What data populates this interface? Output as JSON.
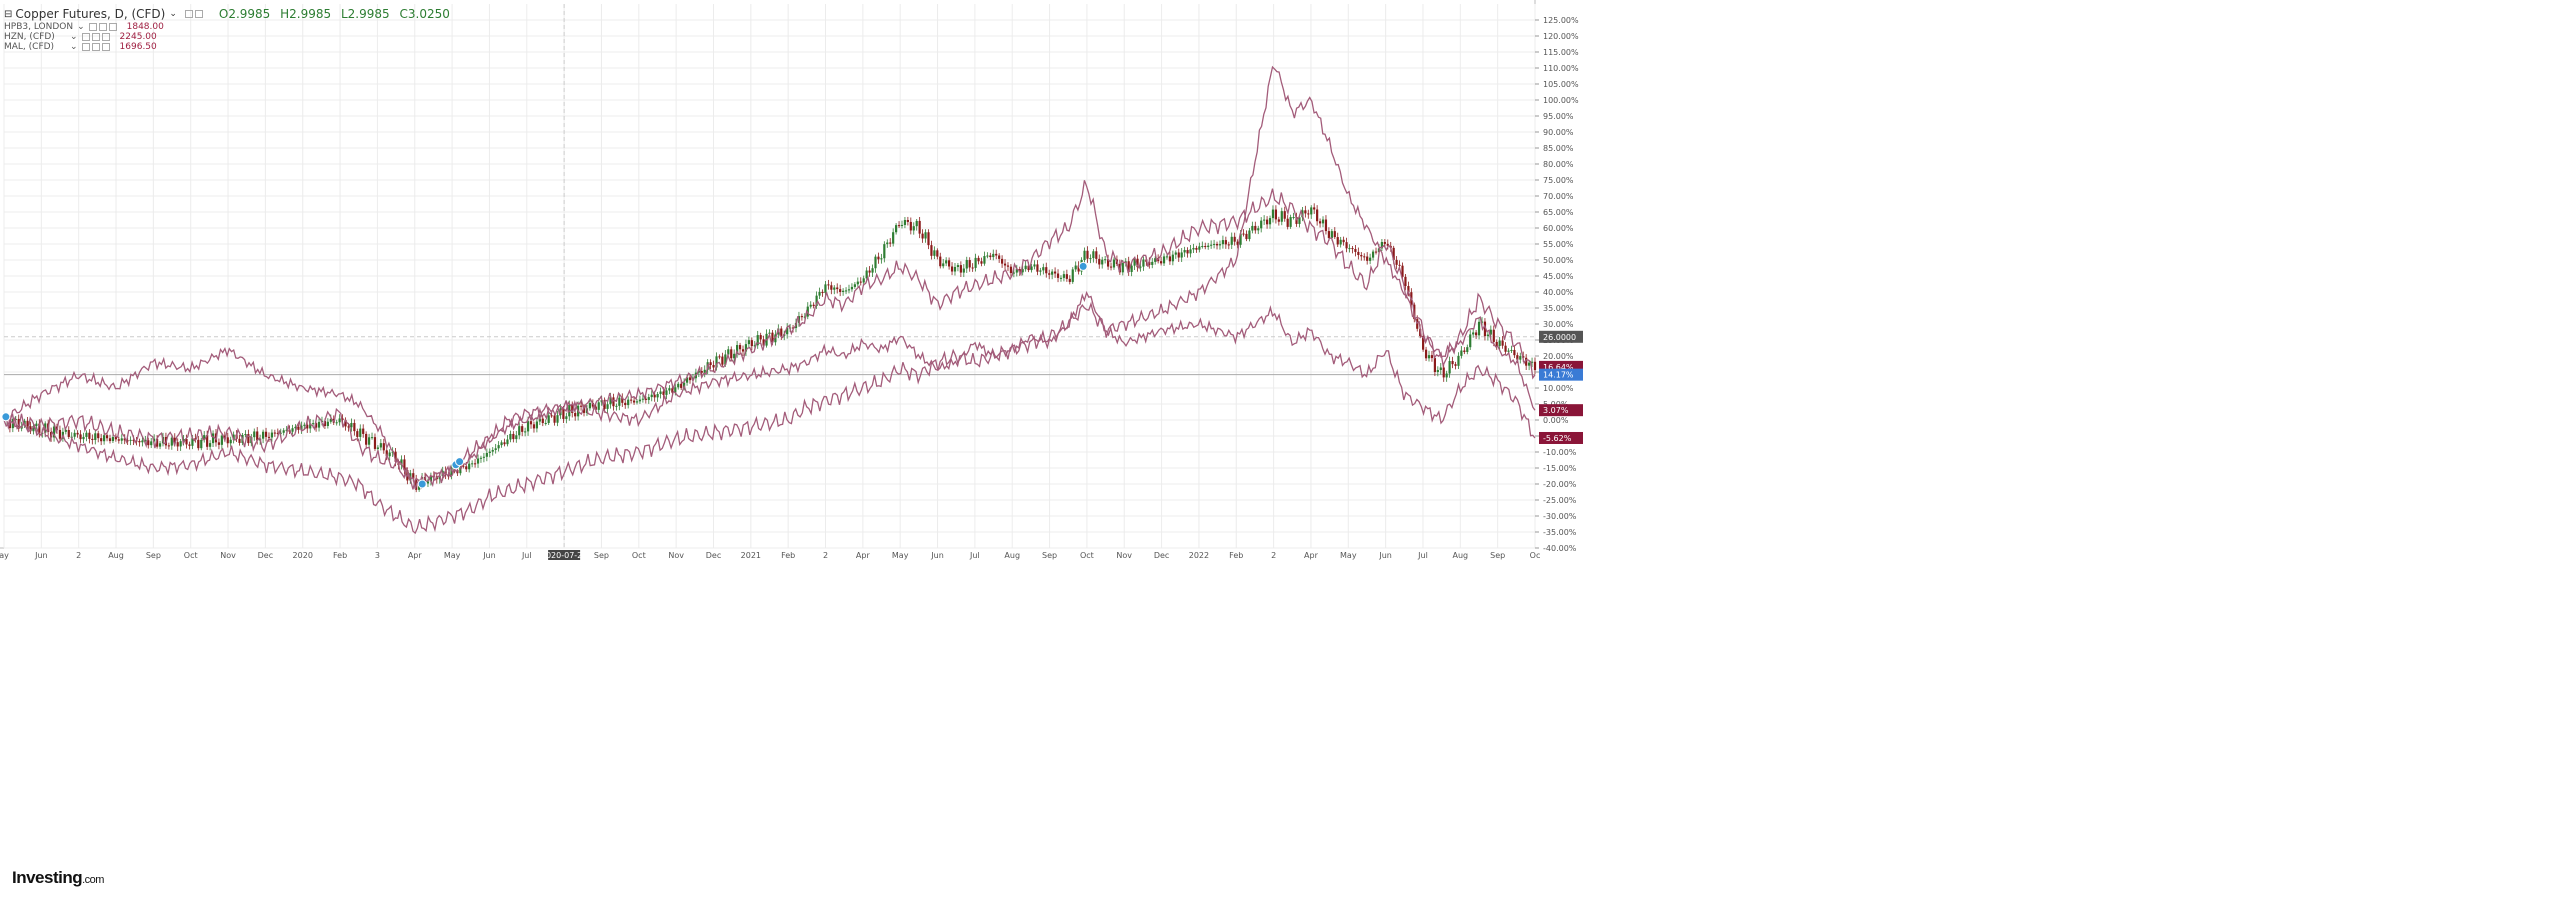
{
  "legend": {
    "main_name": "Copper Futures, D, (CFD)",
    "open": "O2.9985",
    "high": "H2.9985",
    "low": "L2.9985",
    "close": "C3.0250",
    "overlays": [
      {
        "name": "HPB3, LONDON",
        "value": "1848.00"
      },
      {
        "name": "HZN, (CFD)",
        "value": "2245.00"
      },
      {
        "name": "MAL, (CFD)",
        "value": "1696.50"
      }
    ]
  },
  "brand": {
    "main": "Investing",
    "suffix": ".com"
  },
  "colors": {
    "overlay": "#a35c7a",
    "up": "#2e7d32",
    "down": "#8b1a1a",
    "grid": "#ececec",
    "badge_current": "#3a7bd5",
    "badge_dark": "#8a1538",
    "badge_gray": "#555555"
  },
  "chart_data": {
    "type": "line",
    "y_scale": "percent",
    "ylim": [
      -40,
      130
    ],
    "y_ticks": [
      "-40.00%",
      "-35.00%",
      "-30.00%",
      "-25.00%",
      "-20.00%",
      "-15.00%",
      "-10.00%",
      "-5.00%",
      "0.00%",
      "5.00%",
      "10.00%",
      "15.00%",
      "20.00%",
      "25.00%",
      "30.00%",
      "35.00%",
      "40.00%",
      "45.00%",
      "50.00%",
      "55.00%",
      "60.00%",
      "65.00%",
      "70.00%",
      "75.00%",
      "80.00%",
      "85.00%",
      "90.00%",
      "95.00%",
      "100.00%",
      "105.00%",
      "110.00%",
      "115.00%",
      "120.00%",
      "125.00%"
    ],
    "x_ticks": [
      {
        "t": 0,
        "label": "ay"
      },
      {
        "t": 1,
        "label": "Jun"
      },
      {
        "t": 2,
        "label": "2"
      },
      {
        "t": 3,
        "label": "Aug"
      },
      {
        "t": 4,
        "label": "Sep"
      },
      {
        "t": 5,
        "label": "Oct"
      },
      {
        "t": 6,
        "label": "Nov"
      },
      {
        "t": 7,
        "label": "Dec"
      },
      {
        "t": 8,
        "label": "2020"
      },
      {
        "t": 9,
        "label": "Feb"
      },
      {
        "t": 10,
        "label": "3"
      },
      {
        "t": 11,
        "label": "Apr"
      },
      {
        "t": 12,
        "label": "May"
      },
      {
        "t": 13,
        "label": "Jun"
      },
      {
        "t": 14,
        "label": "Jul"
      },
      {
        "t": 15,
        "label": "2020-07-21"
      },
      {
        "t": 16,
        "label": "Sep"
      },
      {
        "t": 17,
        "label": "Oct"
      },
      {
        "t": 18,
        "label": "Nov"
      },
      {
        "t": 19,
        "label": "Dec"
      },
      {
        "t": 20,
        "label": "2021"
      },
      {
        "t": 21,
        "label": "Feb"
      },
      {
        "t": 22,
        "label": "2"
      },
      {
        "t": 23,
        "label": "Apr"
      },
      {
        "t": 24,
        "label": "May"
      },
      {
        "t": 25,
        "label": "Jun"
      },
      {
        "t": 26,
        "label": "Jul"
      },
      {
        "t": 27,
        "label": "Aug"
      },
      {
        "t": 28,
        "label": "Sep"
      },
      {
        "t": 29,
        "label": "Oct"
      },
      {
        "t": 30,
        "label": "Nov"
      },
      {
        "t": 31,
        "label": "Dec"
      },
      {
        "t": 32,
        "label": "2022"
      },
      {
        "t": 33,
        "label": "Feb"
      },
      {
        "t": 34,
        "label": "2"
      },
      {
        "t": 35,
        "label": "Apr"
      },
      {
        "t": 36,
        "label": "May"
      },
      {
        "t": 37,
        "label": "Jun"
      },
      {
        "t": 38,
        "label": "Jul"
      },
      {
        "t": 39,
        "label": "Aug"
      },
      {
        "t": 40,
        "label": "Sep"
      },
      {
        "t": 41,
        "label": "Oc"
      }
    ],
    "highlighted_x_label": "2020-07-21",
    "crosshair_y": 26.0,
    "price_badges": [
      {
        "y": 26.0,
        "label": "26.0000",
        "style": "gray"
      },
      {
        "y": 16.6,
        "label": "16.64%",
        "style": "dark"
      },
      {
        "y": 14.17,
        "label": "14.17%",
        "style": "current"
      },
      {
        "y": 3.07,
        "label": "3.07%",
        "style": "dark"
      },
      {
        "y": -5.62,
        "label": "-5.62%",
        "style": "dark"
      }
    ],
    "series": [
      {
        "name": "Copper Futures",
        "kind": "candles",
        "x": [
          0,
          1,
          2,
          3,
          4,
          5,
          6,
          7,
          8,
          9,
          9.5,
          10,
          10.5,
          11,
          11.5,
          12,
          12.5,
          13,
          13.5,
          14,
          15,
          16,
          17,
          18,
          19,
          20,
          21,
          21.5,
          22,
          22.5,
          23,
          23.5,
          24,
          24.5,
          25,
          25.5,
          26,
          26.5,
          27,
          27.5,
          28,
          28.5,
          29,
          29.5,
          30,
          31,
          32,
          33,
          34,
          34.5,
          35,
          35.5,
          36,
          36.5,
          37,
          37.5,
          38,
          38.5,
          39,
          39.5,
          40,
          40.5,
          41
        ],
        "values": [
          0,
          -3,
          -5,
          -6,
          -7,
          -7,
          -6,
          -5,
          -2,
          0,
          -4,
          -8,
          -12,
          -20,
          -18,
          -16,
          -14,
          -10,
          -6,
          -2,
          2,
          5,
          6,
          10,
          18,
          24,
          28,
          34,
          42,
          40,
          44,
          52,
          62,
          60,
          50,
          47,
          49,
          52,
          46,
          48,
          46,
          44,
          52,
          49,
          48,
          50,
          54,
          56,
          64,
          62,
          66,
          58,
          54,
          50,
          56,
          44,
          22,
          14,
          20,
          30,
          24,
          20,
          16.64
        ]
      },
      {
        "name": "HPB3, LONDON",
        "kind": "line",
        "x": [
          0,
          1,
          2,
          3,
          4,
          5,
          6,
          7,
          8,
          9,
          9.5,
          10,
          10.5,
          11,
          11.5,
          12,
          12.5,
          13,
          13.5,
          14,
          15,
          16,
          17,
          18,
          19,
          20,
          21,
          21.5,
          22,
          22.5,
          23,
          23.5,
          24,
          24.5,
          25,
          25.5,
          26,
          26.5,
          27,
          27.5,
          28,
          28.5,
          29,
          29.5,
          30,
          31,
          32,
          33,
          34,
          34.5,
          35,
          35.5,
          36,
          36.5,
          37,
          37.5,
          38,
          38.5,
          39,
          39.5,
          40,
          40.5,
          41
        ],
        "values": [
          0,
          8,
          14,
          10,
          18,
          16,
          22,
          14,
          10,
          8,
          5,
          -2,
          -12,
          -20,
          -18,
          -16,
          -12,
          -6,
          -2,
          0,
          4,
          6,
          8,
          12,
          16,
          22,
          28,
          32,
          38,
          36,
          42,
          44,
          48,
          44,
          36,
          40,
          42,
          44,
          46,
          50,
          56,
          60,
          74,
          52,
          48,
          52,
          60,
          62,
          70,
          66,
          60,
          56,
          48,
          42,
          56,
          42,
          28,
          18,
          26,
          38,
          30,
          24,
          14.17
        ]
      },
      {
        "name": "HZN, (CFD)",
        "kind": "line",
        "x": [
          0,
          1,
          2,
          3,
          4,
          5,
          6,
          7,
          8,
          9,
          9.5,
          10,
          10.5,
          11,
          11.5,
          12,
          12.5,
          13,
          13.5,
          14,
          15,
          16,
          17,
          18,
          19,
          20,
          21,
          21.5,
          22,
          22.5,
          23,
          23.5,
          24,
          24.5,
          25,
          25.5,
          26,
          26.5,
          27,
          27.5,
          28,
          28.5,
          29,
          29.5,
          30,
          31,
          32,
          33,
          34,
          34.5,
          35,
          35.5,
          36,
          36.5,
          37,
          37.5,
          38,
          38.5,
          39,
          39.5,
          40,
          40.5,
          41
        ],
        "values": [
          0,
          -4,
          -8,
          -12,
          -15,
          -14,
          -10,
          -14,
          -16,
          -18,
          -20,
          -26,
          -30,
          -34,
          -32,
          -30,
          -28,
          -24,
          -22,
          -20,
          -16,
          -12,
          -10,
          -6,
          -4,
          -2,
          0,
          4,
          6,
          8,
          10,
          12,
          16,
          14,
          18,
          20,
          18,
          20,
          22,
          24,
          26,
          30,
          36,
          28,
          30,
          34,
          40,
          50,
          112,
          96,
          100,
          86,
          70,
          60,
          50,
          40,
          26,
          20,
          24,
          32,
          22,
          18,
          3.07
        ]
      },
      {
        "name": "MAL, (CFD)",
        "kind": "line",
        "x": [
          0,
          1,
          2,
          3,
          4,
          5,
          6,
          7,
          8,
          9,
          9.5,
          10,
          10.5,
          11,
          11.5,
          12,
          12.5,
          13,
          13.5,
          14,
          15,
          16,
          17,
          18,
          19,
          20,
          21,
          21.5,
          22,
          22.5,
          23,
          23.5,
          24,
          24.5,
          25,
          25.5,
          26,
          26.5,
          27,
          27.5,
          28,
          28.5,
          29,
          29.5,
          30,
          31,
          32,
          33,
          34,
          34.5,
          35,
          35.5,
          36,
          36.5,
          37,
          37.5,
          38,
          38.5,
          39,
          39.5,
          40,
          40.5,
          41
        ],
        "values": [
          0,
          -2,
          0,
          -4,
          -6,
          -5,
          -4,
          -8,
          -2,
          2,
          -8,
          -12,
          -14,
          -20,
          -18,
          -16,
          -10,
          -6,
          0,
          2,
          4,
          2,
          0,
          8,
          12,
          14,
          16,
          18,
          22,
          20,
          24,
          22,
          26,
          20,
          16,
          18,
          24,
          20,
          22,
          26,
          24,
          30,
          40,
          28,
          24,
          28,
          30,
          26,
          34,
          24,
          28,
          20,
          18,
          14,
          22,
          8,
          4,
          0,
          10,
          16,
          12,
          6,
          -5.62
        ]
      }
    ]
  }
}
